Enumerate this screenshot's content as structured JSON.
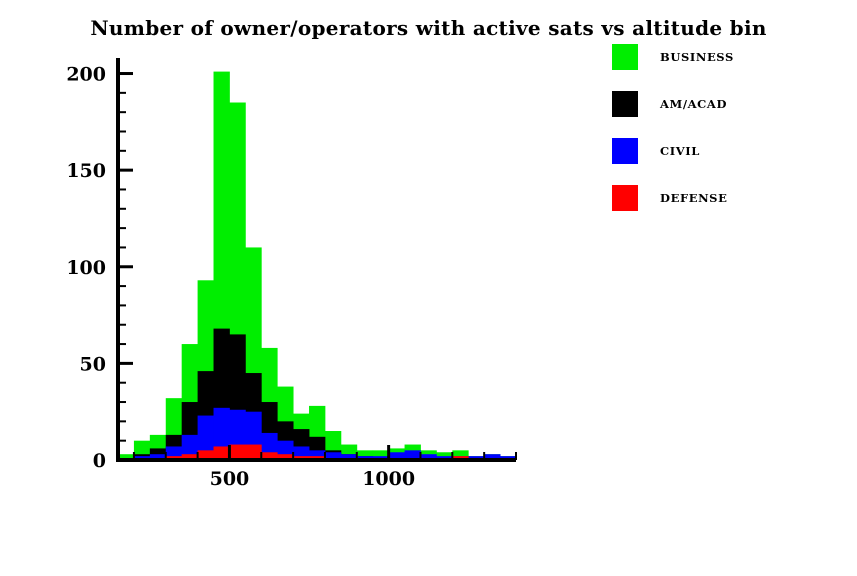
{
  "title": "Number of owner/operators with active sats vs altitude bin",
  "legend": {
    "items": [
      {
        "label": "BUSINESS",
        "color": "#00ee00"
      },
      {
        "label": "AM/ACAD",
        "color": "#000000"
      },
      {
        "label": "CIVIL",
        "color": "#0000ff"
      },
      {
        "label": "DEFENSE",
        "color": "#ff0000"
      }
    ]
  },
  "axes": {
    "x_tick_labels": [
      "500",
      "1000"
    ],
    "y_tick_labels": [
      "0",
      "50",
      "100",
      "150",
      "200"
    ]
  },
  "chart_data": {
    "type": "bar",
    "subtype": "overlaid-histogram",
    "title": "Number of owner/operators with active sats vs altitude bin",
    "xlabel": "",
    "ylabel": "",
    "xlim": [
      150,
      1400
    ],
    "ylim": [
      0,
      207
    ],
    "x_major_ticks": [
      500,
      1000
    ],
    "x_minor_tick_step": 100,
    "y_major_ticks": [
      0,
      50,
      100,
      150,
      200
    ],
    "y_minor_tick_step": 10,
    "grid": false,
    "legend_position": "outside-top-right",
    "bin_width": 50,
    "bin_starts": [
      150,
      200,
      250,
      300,
      350,
      400,
      450,
      500,
      550,
      600,
      650,
      700,
      750,
      800,
      850,
      900,
      950,
      1000,
      1050,
      1100,
      1150,
      1200,
      1250,
      1300,
      1350
    ],
    "series": [
      {
        "name": "BUSINESS",
        "color": "#00ee00",
        "values": [
          3,
          10,
          13,
          32,
          60,
          93,
          201,
          185,
          110,
          58,
          38,
          24,
          28,
          15,
          8,
          5,
          5,
          6,
          8,
          5,
          4,
          5,
          2,
          3,
          2
        ]
      },
      {
        "name": "AM/ACAD",
        "color": "#000000",
        "values": [
          1,
          3,
          6,
          13,
          30,
          46,
          68,
          65,
          45,
          30,
          20,
          16,
          12,
          5,
          3,
          2,
          1,
          2,
          3,
          2,
          1,
          1,
          1,
          1,
          1
        ]
      },
      {
        "name": "CIVIL",
        "color": "#0000ff",
        "values": [
          0,
          2,
          3,
          7,
          13,
          23,
          27,
          26,
          25,
          14,
          10,
          7,
          5,
          4,
          3,
          2,
          2,
          4,
          5,
          3,
          2,
          2,
          2,
          3,
          2
        ]
      },
      {
        "name": "DEFENSE",
        "color": "#ff0000",
        "values": [
          0,
          1,
          1,
          2,
          3,
          5,
          7,
          8,
          8,
          4,
          3,
          2,
          2,
          1,
          1,
          1,
          1,
          1,
          1,
          1,
          1,
          2,
          1,
          1,
          1
        ]
      }
    ],
    "draw_order": [
      "BUSINESS",
      "AM/ACAD",
      "CIVIL",
      "DEFENSE"
    ]
  }
}
